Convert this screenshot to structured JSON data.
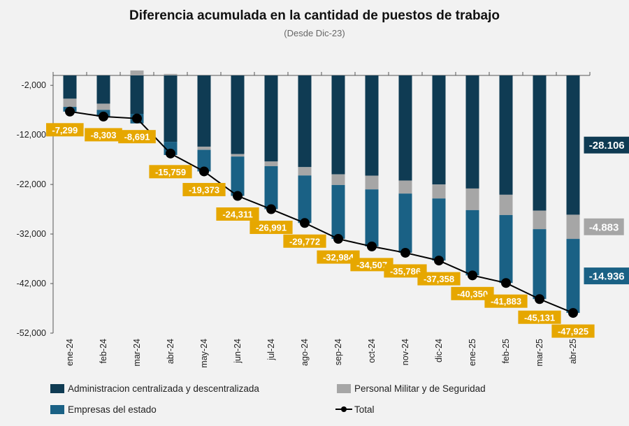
{
  "chart_data": {
    "type": "bar",
    "stacked": true,
    "title": "Diferencia acumulada en la cantidad de puestos de trabajo",
    "subtitle": "(Desde Dic-23)",
    "categories": [
      "ene-24",
      "feb-24",
      "mar-24",
      "abr-24",
      "may-24",
      "jun-24",
      "jul-24",
      "ago-24",
      "sep-24",
      "oct-24",
      "nov-24",
      "dic-24",
      "ene-25",
      "feb-25",
      "mar-25",
      "abr-25"
    ],
    "ylim": [
      -52000,
      0
    ],
    "yticks": [
      -2000,
      -12000,
      -22000,
      -32000,
      -42000,
      -52000
    ],
    "ytick_labels": [
      "-2,000",
      "-12,000",
      "-22,000",
      "-32,000",
      "-42,000",
      "-52,000"
    ],
    "grid": false,
    "legend_placement": "bottom",
    "series": [
      {
        "name": "Administracion centralizada y descentralizada",
        "color": "#0f3b53",
        "values": [
          -4700,
          -5700,
          -7750,
          -13400,
          -14370,
          -15870,
          -17370,
          -18500,
          -19960,
          -20230,
          -21220,
          -22010,
          -22820,
          -24080,
          -27270,
          -28106
        ],
        "end_label": "-28.106"
      },
      {
        "name": "Personal Militar y de Seguridad",
        "color": "#a6a6a6",
        "values": [
          -1650,
          -1250,
          1000,
          300,
          -650,
          -500,
          -940,
          -1690,
          -2150,
          -2770,
          -2620,
          -2820,
          -4360,
          -4090,
          -3750,
          -4883
        ],
        "end_label": "-4.883"
      },
      {
        "name": "Empresas del estado",
        "color": "#1a6185",
        "values": [
          -949,
          -1353,
          -1941,
          -2659,
          -4353,
          -7941,
          -8681,
          -9582,
          -10874,
          -11507,
          -11946,
          -12528,
          -13170,
          -13713,
          -14111,
          -14936
        ],
        "end_label": "-14.936"
      }
    ],
    "total": {
      "name": "Total",
      "type": "line",
      "color": "#000000",
      "label_color": "#e6a700",
      "values": [
        -7299,
        -8303,
        -8691,
        -15759,
        -19373,
        -24311,
        -26991,
        -29772,
        -32984,
        -34507,
        -35786,
        -37358,
        -40350,
        -41883,
        -45131,
        -47925
      ],
      "labels": [
        "-7,299",
        "-8,303",
        "-8,691",
        "-15,759",
        "-19,373",
        "-24,311",
        "-26,991",
        "-29,772",
        "-32,984",
        "-34,507",
        "-35,786",
        "-37,358",
        "-40,350",
        "-41,883",
        "-45,131",
        "-47,925"
      ]
    }
  }
}
